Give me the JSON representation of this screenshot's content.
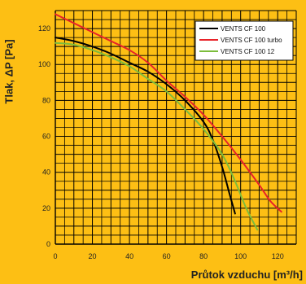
{
  "chart_data": {
    "type": "line",
    "xlabel": "Průtok vzduchu [m³/h]",
    "ylabel": "Tlak, ΔP [Pa]",
    "xlim": [
      0,
      130
    ],
    "ylim": [
      0,
      130
    ],
    "xticks": [
      0,
      20,
      40,
      60,
      80,
      100,
      120
    ],
    "yticks": [
      0,
      20,
      40,
      60,
      80,
      100,
      120
    ],
    "grid": true,
    "legend_position": "top-right",
    "background_color": "#fdbf14",
    "series": [
      {
        "name": "VENTS CF 100",
        "color": "#000000",
        "x": [
          0,
          10,
          20,
          30,
          40,
          50,
          60,
          70,
          80,
          85,
          90,
          94,
          97
        ],
        "y": [
          115,
          113,
          110,
          106,
          101,
          96,
          89,
          80,
          68,
          58,
          43,
          28,
          17
        ]
      },
      {
        "name": "VENTS CF 100 turbo",
        "color": "#e8232a",
        "x": [
          0,
          10,
          20,
          30,
          40,
          50,
          60,
          70,
          80,
          90,
          100,
          110,
          116,
          122
        ],
        "y": [
          128,
          123,
          118,
          113,
          108,
          101,
          91,
          82,
          72,
          60,
          47,
          33,
          24,
          18
        ]
      },
      {
        "name": "VENTS CF 100 12",
        "color": "#7cbd3c",
        "x": [
          0,
          10,
          20,
          30,
          40,
          50,
          60,
          70,
          80,
          90,
          97,
          103,
          109
        ],
        "y": [
          112,
          111,
          108,
          104,
          99,
          92,
          85,
          75,
          64,
          50,
          35,
          20,
          8
        ]
      }
    ]
  }
}
